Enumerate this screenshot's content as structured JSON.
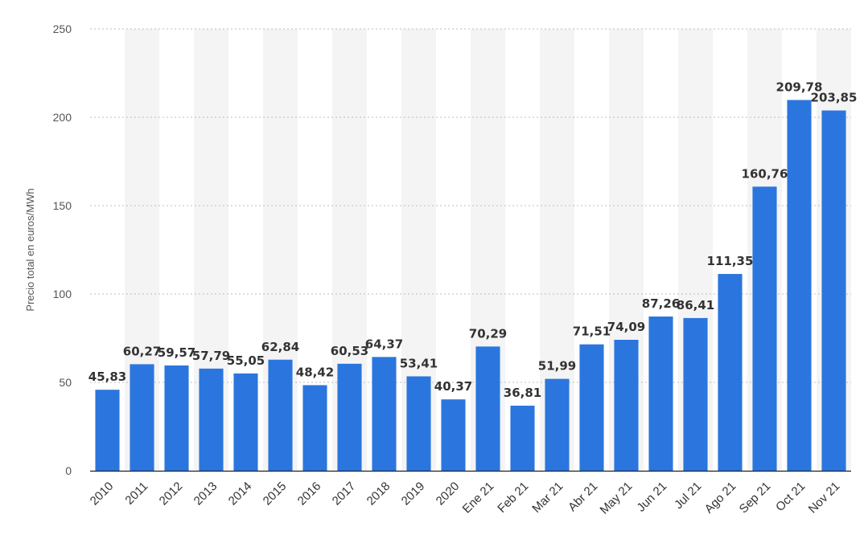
{
  "chart_data": {
    "type": "bar",
    "title": "",
    "xlabel": "",
    "ylabel": "Precio total en euros/MWh",
    "ylim": [
      0,
      250
    ],
    "yticks": [
      0,
      50,
      100,
      150,
      200,
      250
    ],
    "grid": true,
    "bar_color": "#2b76de",
    "categories": [
      "2010",
      "2011",
      "2012",
      "2013",
      "2014",
      "2015",
      "2016",
      "2017",
      "2018",
      "2019",
      "2020",
      "Ene 21",
      "Feb 21",
      "Mar 21",
      "Abr 21",
      "May 21",
      "Jun 21",
      "Jul 21",
      "Ago 21",
      "Sep 21",
      "Oct 21",
      "Nov 21"
    ],
    "values": [
      45.83,
      60.27,
      59.57,
      57.79,
      55.05,
      62.84,
      48.42,
      60.53,
      64.37,
      53.41,
      40.37,
      70.29,
      36.81,
      51.99,
      71.51,
      74.09,
      87.26,
      86.41,
      111.35,
      160.76,
      209.78,
      203.85
    ],
    "value_labels": [
      "45,83",
      "60,27",
      "59,57",
      "57,79",
      "55,05",
      "62,84",
      "48,42",
      "60,53",
      "64,37",
      "53,41",
      "40,37",
      "70,29",
      "36,81",
      "51,99",
      "71,51",
      "74,09",
      "87,26",
      "86,41",
      "111,35",
      "160,76",
      "209,78",
      "203,85"
    ]
  }
}
